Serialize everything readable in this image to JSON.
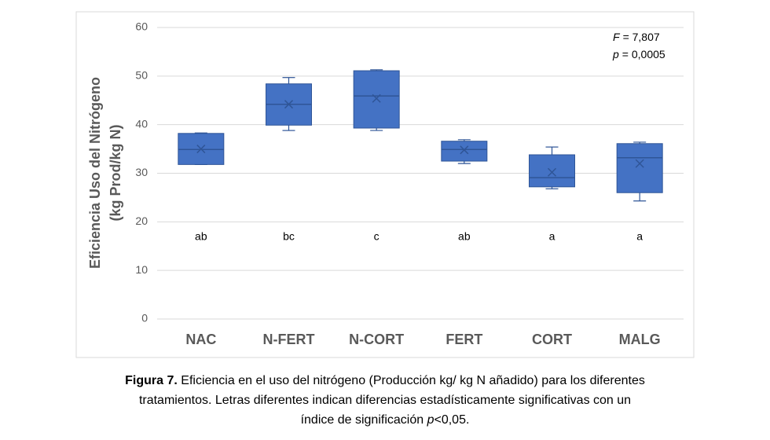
{
  "chart_data": {
    "type": "box",
    "ylabel": [
      "Eficiencia Uso del Nitrógeno",
      "(kg Prod/kg N)"
    ],
    "categories": [
      "NAC",
      "N-FERT",
      "N-CORT",
      "FERT",
      "CORT",
      "MALG"
    ],
    "boxes": [
      {
        "min": 31.8,
        "q1": 31.8,
        "median": 34.9,
        "q3": 38.2,
        "max": 38.3,
        "mean": 35.0
      },
      {
        "min": 38.8,
        "q1": 39.9,
        "median": 44.2,
        "q3": 48.4,
        "max": 49.7,
        "mean": 44.2
      },
      {
        "min": 38.8,
        "q1": 39.3,
        "median": 45.9,
        "q3": 51.1,
        "max": 51.3,
        "mean": 45.4
      },
      {
        "min": 32.0,
        "q1": 32.5,
        "median": 34.9,
        "q3": 36.6,
        "max": 36.9,
        "mean": 34.8
      },
      {
        "min": 26.8,
        "q1": 27.2,
        "median": 29.1,
        "q3": 33.8,
        "max": 35.4,
        "mean": 30.2
      },
      {
        "min": 24.3,
        "q1": 26.0,
        "median": 33.2,
        "q3": 36.1,
        "max": 36.4,
        "mean": 32.0
      }
    ],
    "group_letters": [
      "ab",
      "bc",
      "c",
      "ab",
      "a",
      "a"
    ],
    "stats": [
      {
        "symbol": "F",
        "text": "= 7,807"
      },
      {
        "symbol": "p",
        "text": "= 0,0005"
      }
    ],
    "color": "#4472c4",
    "edge_color": "#2f5597",
    "ylim": [
      0,
      60
    ],
    "yticks": [
      0,
      10,
      20,
      30,
      40,
      50,
      60
    ],
    "grid": true
  },
  "caption": {
    "label": "Figura 7.",
    "line1": "Eficiencia en el uso del nitrógeno (Producción kg/ kg N añadido) para los diferentes",
    "line2": "tratamientos. Letras diferentes indican diferencias estadísticamente significativas con un",
    "line3_start": "índice de significación",
    "line3_italic": "p",
    "line3_end": "<0,05."
  }
}
